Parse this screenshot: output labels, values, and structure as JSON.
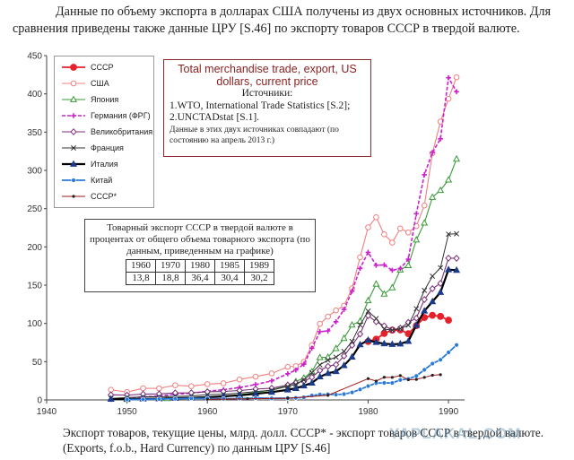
{
  "header": {
    "intro": "Данные по объему экспорта в долларах США получены из двух основных источников. Для сравнения приведены также данные ЦРУ [S.46] по экспорту товаров СССР в твердой валюте."
  },
  "caption": "Экспорт товаров, текущие цены,  млрд. долл. СССР* - экспорт товаров СССР в твердой валюте. (Exports, f.o.b., Hard Currency) по данным ЦРУ [S.46]",
  "watermark": "YAPLAKAL.COM",
  "sources_box": {
    "title": "Total merchandise trade, export, US dollars, current price",
    "sources_label": "Источники:",
    "source1": "1.WTO, International Trade Statistics [S.2];",
    "source2": "2.UNCTADstat [S.1].",
    "note": "Данные в этих двух источниках совпадают (по состоянию на апрель 2013 г.)"
  },
  "share_table": {
    "title": "Товарный экспорт СССР в твердой валюте в процентах от общего объема товарного экспорта (по данным, приведенным на графике)",
    "years": [
      "1960",
      "1970",
      "1980",
      "1985",
      "1989"
    ],
    "values": [
      "13,8",
      "18,8",
      "36,4",
      "30,4",
      "30,2"
    ]
  },
  "chart_data": {
    "type": "line",
    "xlim": [
      1940,
      1992
    ],
    "ylim": [
      0,
      450
    ],
    "x_ticks": [
      "1940",
      "1950",
      "1960",
      "1970",
      "1980",
      "1990"
    ],
    "y_ticks": [
      "0",
      "50",
      "100",
      "150",
      "200",
      "250",
      "300",
      "350",
      "400",
      "450"
    ],
    "legend_position": "top-left",
    "series": [
      {
        "name": "СССР",
        "color": "#e8202a",
        "marker": "circle",
        "x": [
          1980,
          1981,
          1982,
          1983,
          1984,
          1985,
          1986,
          1987,
          1988,
          1989,
          1990
        ],
        "y": [
          76.4,
          79.4,
          86.9,
          91.3,
          91.5,
          86.6,
          97.1,
          107.7,
          110.6,
          109.2,
          104.2
        ]
      },
      {
        "name": "США",
        "color": "#f08080",
        "marker": "circle-open",
        "x": [
          1948,
          1950,
          1952,
          1954,
          1956,
          1958,
          1960,
          1962,
          1964,
          1966,
          1968,
          1970,
          1971,
          1972,
          1973,
          1974,
          1975,
          1976,
          1977,
          1978,
          1979,
          1980,
          1981,
          1982,
          1983,
          1984,
          1985,
          1986,
          1987,
          1988,
          1989,
          1990,
          1991
        ],
        "y": [
          13.3,
          10.3,
          15.2,
          15.1,
          19.1,
          17.9,
          20.6,
          21.7,
          26.7,
          30.4,
          34.6,
          43.2,
          44.1,
          49.8,
          71.4,
          99.4,
          108.9,
          117.0,
          123.2,
          145.8,
          186.4,
          225.6,
          238.7,
          216.4,
          205.6,
          224.0,
          218.8,
          227.2,
          254.1,
          322.4,
          363.8,
          393.6,
          421.7
        ]
      },
      {
        "name": "Япония",
        "color": "#3a9a3a",
        "marker": "triangle-open",
        "x": [
          1950,
          1955,
          1960,
          1962,
          1964,
          1966,
          1968,
          1970,
          1971,
          1972,
          1973,
          1974,
          1975,
          1976,
          1977,
          1978,
          1979,
          1980,
          1981,
          1982,
          1983,
          1984,
          1985,
          1986,
          1987,
          1988,
          1989,
          1990,
          1991
        ],
        "y": [
          0.8,
          2.0,
          4.1,
          4.9,
          6.7,
          9.8,
          13.0,
          19.3,
          24.0,
          28.6,
          36.9,
          55.5,
          55.8,
          67.2,
          80.5,
          98.0,
          103.0,
          129.8,
          151.5,
          138.4,
          146.7,
          170.0,
          175.6,
          209.2,
          231.3,
          264.9,
          273.9,
          287.6,
          314.8
        ]
      },
      {
        "name": "Германия (ФРГ)",
        "color": "#cc22cc",
        "marker": "star",
        "x": [
          1948,
          1950,
          1952,
          1954,
          1956,
          1958,
          1960,
          1962,
          1964,
          1966,
          1968,
          1970,
          1971,
          1972,
          1973,
          1974,
          1975,
          1976,
          1977,
          1978,
          1979,
          1980,
          1981,
          1982,
          1983,
          1984,
          1985,
          1986,
          1987,
          1988,
          1989,
          1990,
          1991
        ],
        "y": [
          0.6,
          2.0,
          4.0,
          5.2,
          7.3,
          8.8,
          11.4,
          13.3,
          16.2,
          20.1,
          24.9,
          34.2,
          39.0,
          46.7,
          67.6,
          89.2,
          90.2,
          102.2,
          118.1,
          142.1,
          171.9,
          192.9,
          176.0,
          176.4,
          169.4,
          171.7,
          183.9,
          243.3,
          294.4,
          323.3,
          341.2,
          421.1,
          402.8
        ]
      },
      {
        "name": "Великобритания",
        "color": "#7a2e7a",
        "marker": "diamond-open",
        "x": [
          1948,
          1950,
          1952,
          1954,
          1956,
          1958,
          1960,
          1962,
          1964,
          1966,
          1968,
          1970,
          1971,
          1972,
          1973,
          1974,
          1975,
          1976,
          1977,
          1978,
          1979,
          1980,
          1981,
          1982,
          1983,
          1984,
          1985,
          1986,
          1987,
          1988,
          1989,
          1990,
          1991
        ],
        "y": [
          6.6,
          6.3,
          7.6,
          7.8,
          9.2,
          9.3,
          10.6,
          11.1,
          12.3,
          14.2,
          15.3,
          19.4,
          22.3,
          24.3,
          29.6,
          38.5,
          43.9,
          46.2,
          57.4,
          71.4,
          86.1,
          110.1,
          102.2,
          96.8,
          91.5,
          93.8,
          101.3,
          106.9,
          131.2,
          145.4,
          152.3,
          185.3,
          185.1
        ]
      },
      {
        "name": "Франция",
        "color": "#333333",
        "marker": "x",
        "x": [
          1948,
          1950,
          1952,
          1954,
          1956,
          1958,
          1960,
          1962,
          1964,
          1966,
          1968,
          1970,
          1971,
          1972,
          1973,
          1974,
          1975,
          1976,
          1977,
          1978,
          1979,
          1980,
          1981,
          1982,
          1983,
          1984,
          1985,
          1986,
          1987,
          1988,
          1989,
          1990,
          1991
        ],
        "y": [
          2.0,
          3.1,
          4.0,
          4.2,
          4.5,
          5.1,
          6.9,
          7.4,
          8.9,
          10.9,
          12.7,
          17.7,
          20.4,
          26.0,
          35.6,
          45.8,
          52.0,
          55.9,
          63.5,
          76.5,
          97.9,
          116.0,
          106.4,
          92.6,
          91.2,
          93.2,
          97.6,
          119.2,
          143.1,
          161.7,
          172.7,
          216.6,
          217.1
        ]
      },
      {
        "name": "Италия",
        "color": "#1a3a8a",
        "marker": "triangle",
        "x": [
          1948,
          1950,
          1952,
          1954,
          1956,
          1958,
          1960,
          1962,
          1964,
          1966,
          1968,
          1970,
          1971,
          1972,
          1973,
          1974,
          1975,
          1976,
          1977,
          1978,
          1979,
          1980,
          1981,
          1982,
          1983,
          1984,
          1985,
          1986,
          1987,
          1988,
          1989,
          1990,
          1991
        ],
        "y": [
          1.1,
          1.2,
          1.4,
          1.6,
          2.2,
          2.6,
          3.6,
          4.7,
          6.0,
          8.0,
          10.2,
          13.2,
          15.1,
          18.5,
          22.2,
          30.3,
          34.8,
          37.3,
          45.0,
          56.1,
          72.2,
          78.1,
          75.3,
          73.5,
          72.7,
          73.3,
          76.7,
          97.8,
          116.3,
          128.5,
          140.6,
          170.3,
          169.5
        ]
      },
      {
        "name": "Китай",
        "color": "#2a7ad8",
        "marker": "circle-filled",
        "x": [
          1950,
          1952,
          1954,
          1956,
          1958,
          1960,
          1962,
          1964,
          1966,
          1968,
          1970,
          1971,
          1972,
          1973,
          1974,
          1975,
          1976,
          1977,
          1978,
          1979,
          1980,
          1981,
          1982,
          1983,
          1984,
          1985,
          1986,
          1987,
          1988,
          1989,
          1990,
          1991
        ],
        "y": [
          0.6,
          0.8,
          1.1,
          1.6,
          2.0,
          1.9,
          1.5,
          1.8,
          2.4,
          2.1,
          2.3,
          2.6,
          3.4,
          5.8,
          7.0,
          7.3,
          6.9,
          7.6,
          9.8,
          13.7,
          18.1,
          22.0,
          22.3,
          22.2,
          26.1,
          27.4,
          31.4,
          39.4,
          47.5,
          52.5,
          62.1,
          71.8
        ]
      },
      {
        "name": "СССР*",
        "color": "#a01818",
        "marker": "dot",
        "x": [
          1960,
          1965,
          1970,
          1975,
          1980,
          1981,
          1982,
          1983,
          1984,
          1985,
          1986,
          1987,
          1988,
          1989
        ],
        "y": [
          0.8,
          1.5,
          2.2,
          6.0,
          27.8,
          24.7,
          29.6,
          29.5,
          31.8,
          26.3,
          26.8,
          29.5,
          32.2,
          33.0
        ]
      }
    ]
  }
}
